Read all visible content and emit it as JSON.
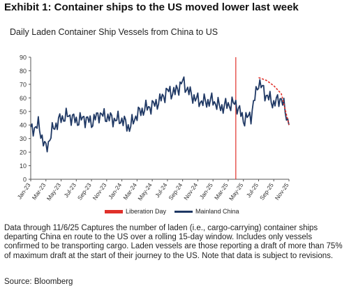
{
  "header": {
    "exhibit_title": "Exhibit 1: Container ships to the US moved lower last week"
  },
  "chart_data": {
    "type": "line",
    "title": "Daily Laden Container Ship Vessels from China to US",
    "xlabel": "",
    "ylabel": "",
    "ylim": [
      0,
      90
    ],
    "yticks": [
      "0",
      "10",
      "20",
      "30",
      "40",
      "50",
      "60",
      "70",
      "80",
      "90"
    ],
    "xtick_labels": [
      "Jan-23",
      "Mar-23",
      "May-23",
      "Jul-23",
      "Sep-23",
      "Nov-23",
      "Jan-24",
      "Mar-24",
      "May-24",
      "Jul-24",
      "Sep-24",
      "Nov-24",
      "Jan-25",
      "Mar-25",
      "May-25",
      "Jul-25",
      "Sep-25",
      "Nov-25"
    ],
    "grid": false,
    "legend_position": "bottom-center",
    "colors": {
      "mainland_china": "#1f3864",
      "liberation_day": "#e0302a",
      "projection": "#e0302a"
    },
    "liberation_day_x": "Apr-25",
    "series": [
      {
        "name": "Mainland China",
        "x": [
          "Jan-23",
          "Feb-23",
          "Mar-23",
          "Apr-23",
          "May-23",
          "Jun-23",
          "Jul-23",
          "Aug-23",
          "Sep-23",
          "Oct-23",
          "Nov-23",
          "Dec-23",
          "Jan-24",
          "Feb-24",
          "Mar-24",
          "Apr-24",
          "May-24",
          "Jun-24",
          "Jul-24",
          "Aug-24",
          "Sep-24",
          "Oct-24",
          "Nov-24",
          "Dec-24",
          "Jan-25",
          "Feb-25",
          "Mar-25",
          "Apr-25",
          "May-25",
          "Jun-25",
          "Jul-25",
          "Aug-25",
          "Sep-25",
          "Oct-25",
          "Nov-25"
        ],
        "values": [
          36,
          40,
          22,
          38,
          45,
          47,
          43,
          45,
          42,
          48,
          46,
          44,
          44,
          38,
          48,
          52,
          54,
          58,
          65,
          64,
          72,
          63,
          58,
          57,
          58,
          53,
          55,
          56,
          44,
          47,
          72,
          62,
          56,
          60,
          40
        ]
      },
      {
        "name": "Liberation Day",
        "type": "vline"
      }
    ],
    "projection_line": {
      "x": [
        "Jul-25",
        "Aug-25",
        "Sep-25",
        "Oct-25",
        "Nov-25"
      ],
      "values": [
        75,
        73,
        69,
        63,
        40
      ]
    }
  },
  "footer": {
    "note": "Data through 11/6/25 Captures the number of laden (i.e., cargo-carrying) container ships departing China en route to the US over a rolling 15-day window. Includes only vessels confirmed to be transporting cargo. Laden vessels are those reporting a draft of more than 75% of maximum draft at the start of their journey to the US. Note that data is subject to revisions.",
    "source": "Source: Bloomberg"
  }
}
